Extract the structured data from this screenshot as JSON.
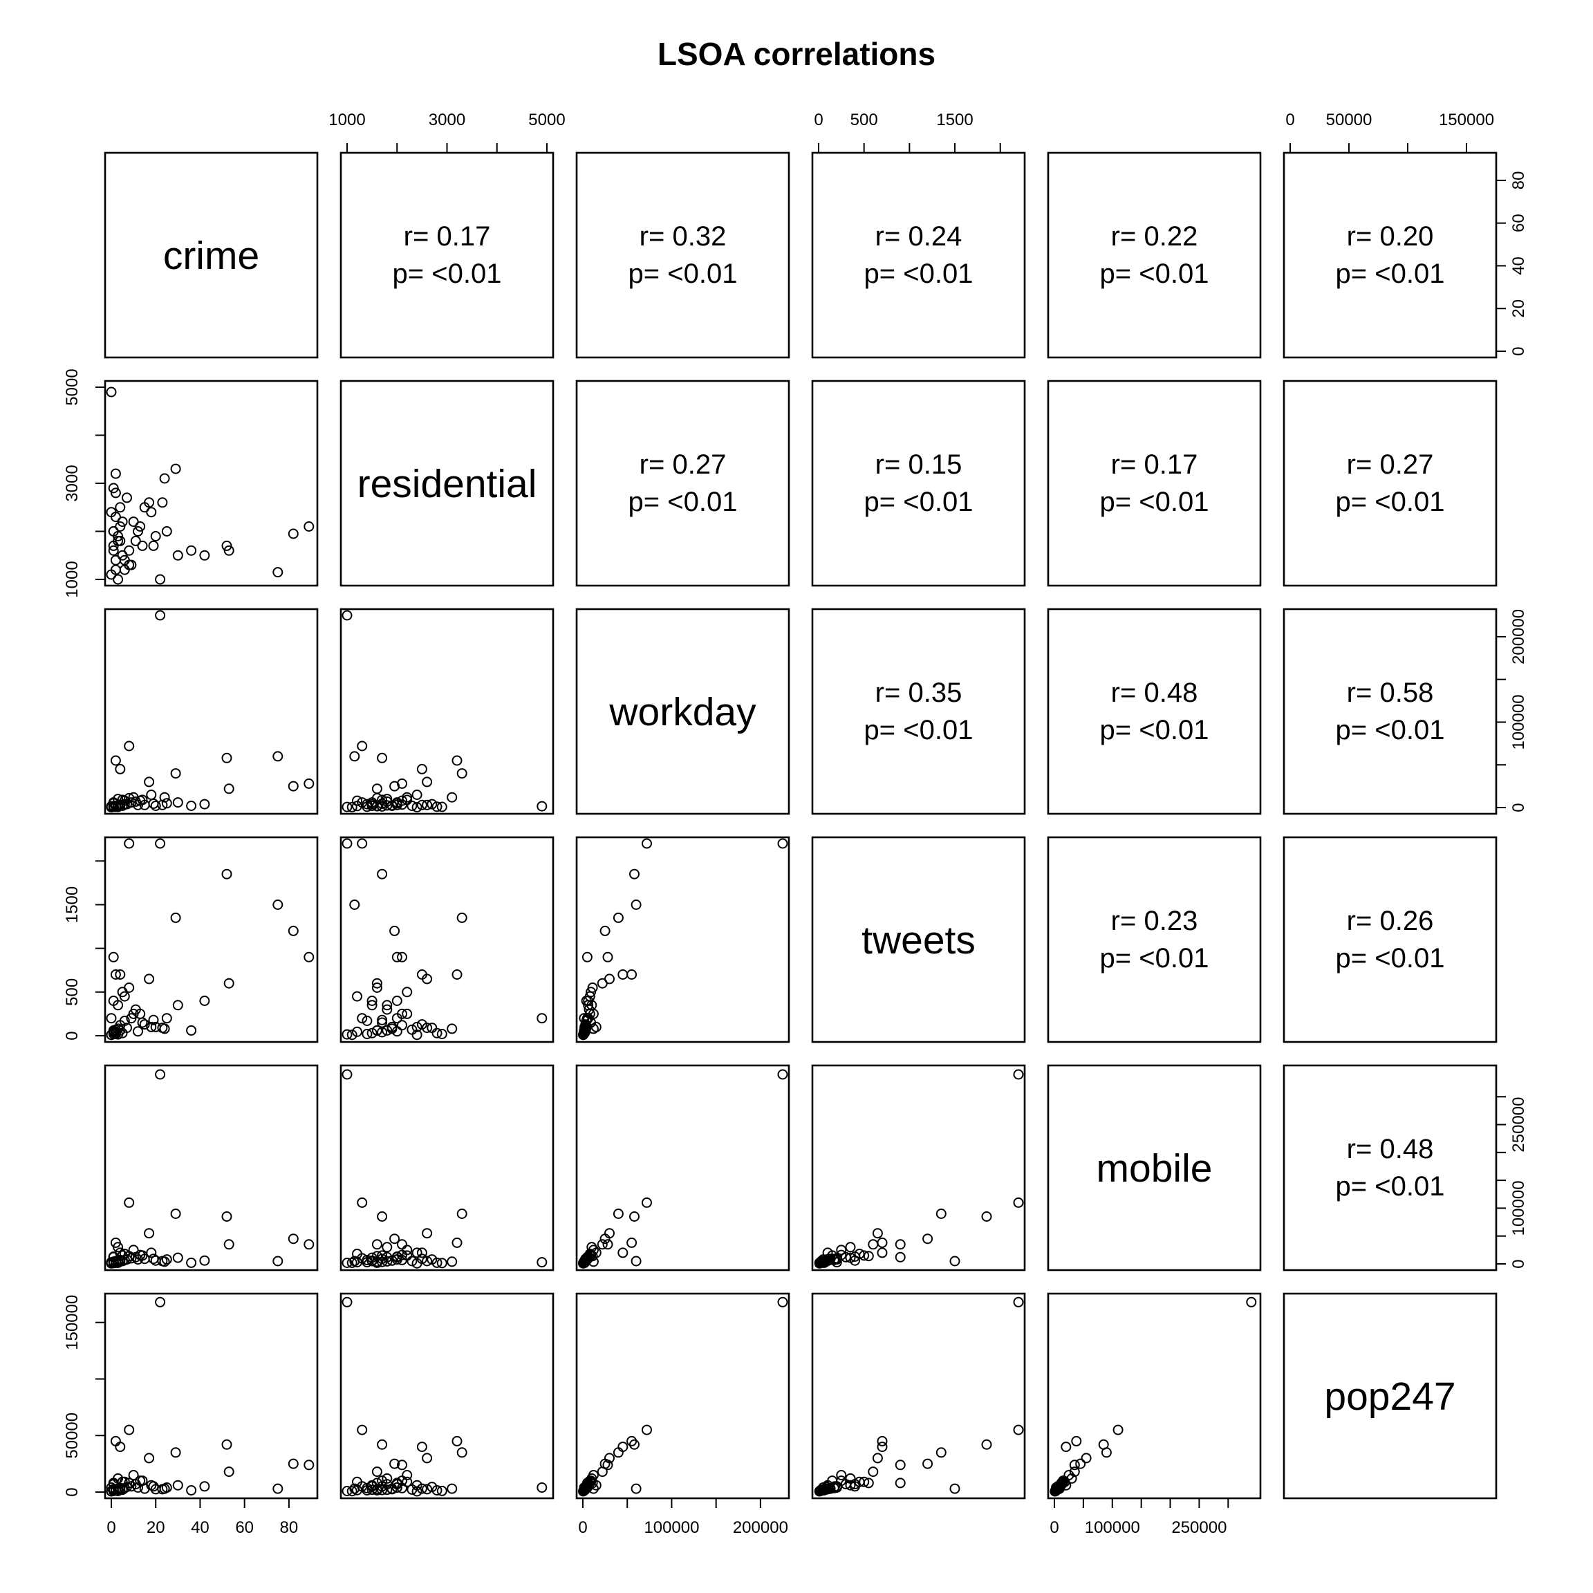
{
  "chart_data": {
    "type": "scatter",
    "title": "LSOA correlations",
    "variables": [
      "crime",
      "residential",
      "workday",
      "tweets",
      "mobile",
      "pop247"
    ],
    "axis_ranges": {
      "crime": [
        0,
        90
      ],
      "residential": [
        1000,
        5000
      ],
      "workday": [
        0,
        225000
      ],
      "tweets": [
        0,
        2200
      ],
      "mobile": [
        0,
        345000
      ],
      "pop247": [
        0,
        170000
      ]
    },
    "tick_labels": {
      "crime": {
        "ticks": [
          0,
          20,
          40,
          60,
          80
        ],
        "labels": [
          "0",
          "20",
          "40",
          "60",
          "80"
        ]
      },
      "residential": {
        "ticks": [
          1000,
          2000,
          3000,
          4000,
          5000
        ],
        "labels": [
          "1000",
          "",
          "3000",
          "",
          "5000"
        ]
      },
      "workday": {
        "ticks": [
          0,
          50000,
          100000,
          150000,
          200000
        ],
        "labels": [
          "0",
          "",
          "100000",
          "",
          "200000"
        ]
      },
      "tweets": {
        "ticks": [
          0,
          500,
          1000,
          1500,
          2000
        ],
        "labels": [
          "0",
          "500",
          "",
          "1500",
          ""
        ]
      },
      "mobile": {
        "ticks": [
          0,
          50000,
          100000,
          150000,
          200000,
          250000,
          300000
        ],
        "labels": [
          "0",
          "",
          "100000",
          "",
          "",
          "250000",
          ""
        ]
      },
      "pop247": {
        "ticks": [
          0,
          50000,
          100000,
          150000
        ],
        "labels": [
          "0",
          "50000",
          "",
          "150000"
        ]
      }
    },
    "correlations": [
      {
        "row": "crime",
        "col": "residential",
        "r": "r= 0.17",
        "p": "p= <0.01"
      },
      {
        "row": "crime",
        "col": "workday",
        "r": "r= 0.32",
        "p": "p= <0.01"
      },
      {
        "row": "crime",
        "col": "tweets",
        "r": "r= 0.24",
        "p": "p= <0.01"
      },
      {
        "row": "crime",
        "col": "mobile",
        "r": "r= 0.22",
        "p": "p= <0.01"
      },
      {
        "row": "crime",
        "col": "pop247",
        "r": "r= 0.20",
        "p": "p= <0.01"
      },
      {
        "row": "residential",
        "col": "workday",
        "r": "r= 0.27",
        "p": "p= <0.01"
      },
      {
        "row": "residential",
        "col": "tweets",
        "r": "r= 0.15",
        "p": "p= <0.01"
      },
      {
        "row": "residential",
        "col": "mobile",
        "r": "r= 0.17",
        "p": "p= <0.01"
      },
      {
        "row": "residential",
        "col": "pop247",
        "r": "r= 0.27",
        "p": "p= <0.01"
      },
      {
        "row": "workday",
        "col": "tweets",
        "r": "r= 0.35",
        "p": "p= <0.01"
      },
      {
        "row": "workday",
        "col": "mobile",
        "r": "r= 0.48",
        "p": "p= <0.01"
      },
      {
        "row": "workday",
        "col": "pop247",
        "r": "r= 0.58",
        "p": "p= <0.01"
      },
      {
        "row": "tweets",
        "col": "mobile",
        "r": "r= 0.23",
        "p": "p= <0.01"
      },
      {
        "row": "tweets",
        "col": "pop247",
        "r": "r= 0.26",
        "p": "p= <0.01"
      },
      {
        "row": "mobile",
        "col": "pop247",
        "r": "r= 0.48",
        "p": "p= <0.01"
      }
    ],
    "observations": [
      {
        "crime": 0,
        "residential": 4900,
        "workday": 1500,
        "tweets": 200,
        "mobile": 3000,
        "pop247": 4000
      },
      {
        "crime": 22,
        "residential": 1000,
        "workday": 225000,
        "tweets": 2200,
        "mobile": 340000,
        "pop247": 168000
      },
      {
        "crime": 8,
        "residential": 1300,
        "workday": 72000,
        "tweets": 2200,
        "mobile": 110000,
        "pop247": 55000
      },
      {
        "crime": 52,
        "residential": 1700,
        "workday": 58000,
        "tweets": 1850,
        "mobile": 85000,
        "pop247": 42000
      },
      {
        "crime": 75,
        "residential": 1150,
        "workday": 60000,
        "tweets": 1500,
        "mobile": 5000,
        "pop247": 3000
      },
      {
        "crime": 82,
        "residential": 1950,
        "workday": 25000,
        "tweets": 1200,
        "mobile": 45000,
        "pop247": 25000
      },
      {
        "crime": 89,
        "residential": 2100,
        "workday": 28000,
        "tweets": 900,
        "mobile": 35000,
        "pop247": 24000
      },
      {
        "crime": 29,
        "residential": 3300,
        "workday": 40000,
        "tweets": 1350,
        "mobile": 90000,
        "pop247": 35000
      },
      {
        "crime": 53,
        "residential": 1600,
        "workday": 22000,
        "tweets": 600,
        "mobile": 35000,
        "pop247": 18000
      },
      {
        "crime": 42,
        "residential": 1500,
        "workday": 4000,
        "tweets": 400,
        "mobile": 6000,
        "pop247": 5000
      },
      {
        "crime": 36,
        "residential": 1600,
        "workday": 2000,
        "tweets": 60,
        "mobile": 2000,
        "pop247": 1500
      },
      {
        "crime": 24,
        "residential": 3100,
        "workday": 12000,
        "tweets": 80,
        "mobile": 4000,
        "pop247": 3000
      },
      {
        "crime": 2,
        "residential": 3200,
        "workday": 55000,
        "tweets": 700,
        "mobile": 38000,
        "pop247": 45000
      },
      {
        "crime": 4,
        "residential": 2500,
        "workday": 45000,
        "tweets": 700,
        "mobile": 20000,
        "pop247": 40000
      },
      {
        "crime": 17,
        "residential": 2600,
        "workday": 30000,
        "tweets": 650,
        "mobile": 55000,
        "pop247": 30000
      },
      {
        "crime": 1,
        "residential": 2000,
        "workday": 5000,
        "tweets": 900,
        "mobile": 12000,
        "pop247": 8000
      },
      {
        "crime": 3,
        "residential": 1800,
        "workday": 10000,
        "tweets": 350,
        "mobile": 30000,
        "pop247": 12000
      },
      {
        "crime": 6,
        "residential": 1200,
        "workday": 8000,
        "tweets": 450,
        "mobile": 18000,
        "pop247": 9000
      },
      {
        "crime": 10,
        "residential": 2200,
        "workday": 12000,
        "tweets": 250,
        "mobile": 25000,
        "pop247": 15000
      },
      {
        "crime": 14,
        "residential": 1700,
        "workday": 9000,
        "tweets": 150,
        "mobile": 15000,
        "pop247": 10000
      },
      {
        "crime": 18,
        "residential": 2400,
        "workday": 15000,
        "tweets": 100,
        "mobile": 20000,
        "pop247": 6000
      },
      {
        "crime": 12,
        "residential": 2000,
        "workday": 3000,
        "tweets": 50,
        "mobile": 8000,
        "pop247": 4000
      },
      {
        "crime": 5,
        "residential": 1500,
        "workday": 2000,
        "tweets": 30,
        "mobile": 5000,
        "pop247": 2000
      },
      {
        "crime": 2,
        "residential": 1400,
        "workday": 1000,
        "tweets": 20,
        "mobile": 3000,
        "pop247": 1500
      },
      {
        "crime": 1,
        "residential": 1600,
        "workday": 1500,
        "tweets": 60,
        "mobile": 4000,
        "pop247": 2500
      },
      {
        "crime": 3,
        "residential": 1900,
        "workday": 2500,
        "tweets": 80,
        "mobile": 6000,
        "pop247": 3000
      },
      {
        "crime": 4,
        "residential": 2100,
        "workday": 3500,
        "tweets": 120,
        "mobile": 7000,
        "pop247": 3500
      },
      {
        "crime": 0,
        "residential": 1100,
        "workday": 500,
        "tweets": 10,
        "mobile": 2000,
        "pop247": 800
      },
      {
        "crime": 1,
        "residential": 1700,
        "workday": 1200,
        "tweets": 40,
        "mobile": 3500,
        "pop247": 1800
      },
      {
        "crime": 2,
        "residential": 2300,
        "workday": 2000,
        "tweets": 70,
        "mobile": 5000,
        "pop247": 2200
      },
      {
        "crime": 7,
        "residential": 2700,
        "workday": 4000,
        "tweets": 90,
        "mobile": 8000,
        "pop247": 4500
      },
      {
        "crime": 9,
        "residential": 1300,
        "workday": 6000,
        "tweets": 200,
        "mobile": 10000,
        "pop247": 5000
      },
      {
        "crime": 11,
        "residential": 1800,
        "workday": 7000,
        "tweets": 300,
        "mobile": 12000,
        "pop247": 7000
      },
      {
        "crime": 15,
        "residential": 2500,
        "workday": 3000,
        "tweets": 130,
        "mobile": 9000,
        "pop247": 3000
      },
      {
        "crime": 20,
        "residential": 1900,
        "workday": 2000,
        "tweets": 100,
        "mobile": 6000,
        "pop247": 2500
      },
      {
        "crime": 25,
        "residential": 2000,
        "workday": 5000,
        "tweets": 200,
        "mobile": 8000,
        "pop247": 4000
      },
      {
        "crime": 30,
        "residential": 1500,
        "workday": 6000,
        "tweets": 350,
        "mobile": 11000,
        "pop247": 6000
      },
      {
        "crime": 2,
        "residential": 2800,
        "workday": 1000,
        "tweets": 30,
        "mobile": 2000,
        "pop247": 1500
      },
      {
        "crime": 1,
        "residential": 2900,
        "workday": 800,
        "tweets": 20,
        "mobile": 1500,
        "pop247": 1000
      },
      {
        "crime": 3,
        "residential": 1000,
        "workday": 700,
        "tweets": 15,
        "mobile": 1800,
        "pop247": 900
      },
      {
        "crime": 0,
        "residential": 2400,
        "workday": 400,
        "tweets": 10,
        "mobile": 1000,
        "pop247": 600
      },
      {
        "crime": 5,
        "residential": 2200,
        "workday": 9000,
        "tweets": 500,
        "mobile": 15000,
        "pop247": 9000
      },
      {
        "crime": 8,
        "residential": 1600,
        "workday": 11000,
        "tweets": 550,
        "mobile": 14000,
        "pop247": 8000
      },
      {
        "crime": 6,
        "residential": 1400,
        "workday": 4000,
        "tweets": 170,
        "mobile": 7000,
        "pop247": 3500
      },
      {
        "crime": 4,
        "residential": 1800,
        "workday": 2500,
        "tweets": 60,
        "mobile": 4500,
        "pop247": 2000
      },
      {
        "crime": 2,
        "residential": 1200,
        "workday": 1800,
        "tweets": 45,
        "mobile": 3000,
        "pop247": 1700
      },
      {
        "crime": 13,
        "residential": 2100,
        "workday": 8000,
        "tweets": 250,
        "mobile": 16000,
        "pop247": 10000
      },
      {
        "crime": 19,
        "residential": 1700,
        "workday": 4500,
        "tweets": 180,
        "mobile": 9000,
        "pop247": 5000
      },
      {
        "crime": 23,
        "residential": 2600,
        "workday": 3000,
        "tweets": 90,
        "mobile": 5000,
        "pop247": 2500
      },
      {
        "crime": 1,
        "residential": 2000,
        "workday": 6000,
        "tweets": 400,
        "mobile": 13000,
        "pop247": 7000
      }
    ]
  }
}
